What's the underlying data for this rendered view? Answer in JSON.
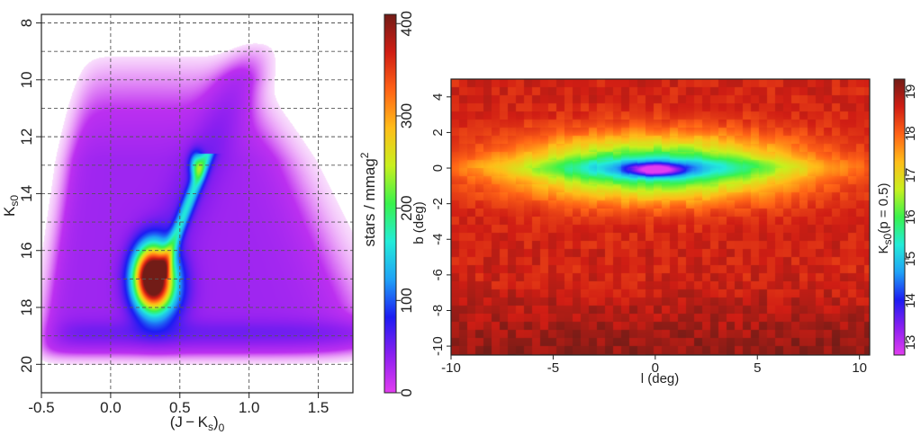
{
  "chart_data": [
    {
      "type": "heatmap",
      "title": "",
      "xlabel": {
        "base": "(J − K",
        "sub1": "s",
        "close": ")",
        "sub2": "0"
      },
      "ylabel": {
        "base": "K",
        "sub": "s0"
      },
      "xlim": [
        -0.5,
        1.75
      ],
      "ylim": [
        21,
        7.7
      ],
      "y_inverted": true,
      "xticks": [
        -0.5,
        0.0,
        0.5,
        1.0,
        1.5
      ],
      "xtick_labels": [
        "-0.5",
        "0.0",
        "0.5",
        "1.0",
        "1.5"
      ],
      "yticks": [
        8,
        10,
        12,
        14,
        16,
        18,
        20
      ],
      "ytick_labels": [
        "8",
        "10",
        "12",
        "14",
        "16",
        "18",
        "20"
      ],
      "grid": true,
      "grid_x": [
        0.0,
        0.5,
        1.0,
        1.5
      ],
      "grid_y": [
        8,
        9,
        10,
        11,
        12,
        13,
        14,
        15,
        16,
        17,
        18,
        19,
        20
      ],
      "colorbar": {
        "label": "stars / mmag",
        "label_sup": "2",
        "range": [
          0,
          410
        ],
        "ticks": [
          0,
          100,
          200,
          300,
          400
        ],
        "tick_labels": [
          "0",
          "100",
          "200",
          "300",
          "400"
        ],
        "colors": [
          "#e23df0",
          "#8b1ff0",
          "#1c1cf2",
          "#1fa2f6",
          "#23ecd8",
          "#39f24c",
          "#c8f01e",
          "#ffbd19",
          "#ff6316",
          "#d01d14",
          "#721c17"
        ]
      },
      "features": {
        "red_clump_peak": {
          "x": 0.3,
          "y": 16.9,
          "value": 400
        },
        "upper_branch": {
          "x": 0.62,
          "y": 13.0,
          "value": 120
        }
      }
    },
    {
      "type": "heatmap",
      "title": "",
      "xlabel": "l (deg)",
      "ylabel": "b (deg)",
      "xlim": [
        -10,
        10.5
      ],
      "ylim": [
        -10.5,
        5
      ],
      "xticks": [
        -10,
        -5,
        0,
        5,
        10
      ],
      "xtick_labels": [
        "-10",
        "-5",
        "0",
        "5",
        "10"
      ],
      "yticks": [
        -10,
        -8,
        -6,
        -4,
        -2,
        0,
        2,
        4
      ],
      "ytick_labels": [
        "-10",
        "-8",
        "-6",
        "-4",
        "-2",
        "0",
        "2",
        "4"
      ],
      "grid": false,
      "colorbar": {
        "label": "K",
        "label_sub": "s0",
        "label_rest": "(p = 0.5)",
        "range": [
          12.7,
          19.3
        ],
        "ticks": [
          13,
          14,
          15,
          16,
          17,
          18,
          19
        ],
        "tick_labels": [
          "13",
          "14",
          "15",
          "16",
          "17",
          "18",
          "19"
        ],
        "colors": [
          "#e23df0",
          "#8b1ff0",
          "#1c1cf2",
          "#1fa2f6",
          "#23ecd8",
          "#39f24c",
          "#c8f01e",
          "#ffbd19",
          "#ff6316",
          "#d01d14",
          "#721c17"
        ]
      },
      "features": {
        "central_minimum": {
          "l": 0.0,
          "b": -0.1,
          "value": 13.0
        },
        "plane_value": 15.5,
        "far_field_value": 18.6
      }
    }
  ]
}
